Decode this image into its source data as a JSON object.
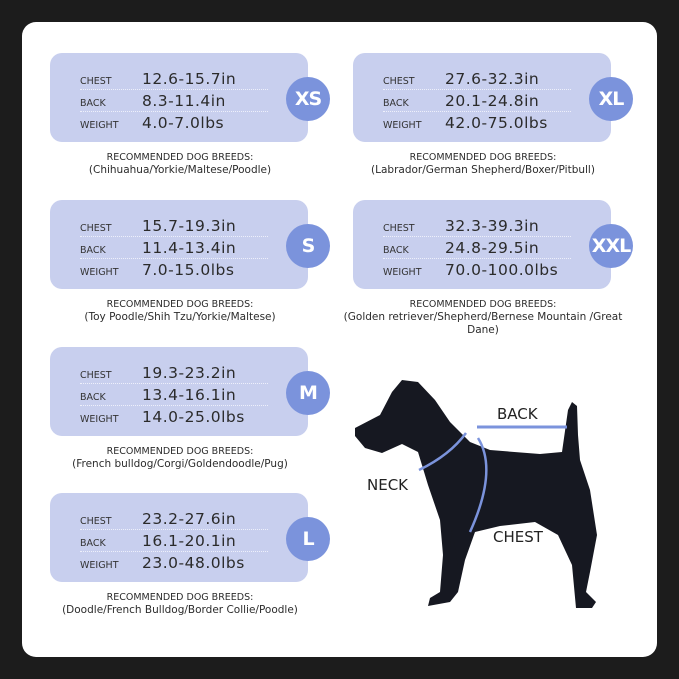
{
  "labels": {
    "chest": "CHEST",
    "back": "BACK",
    "weight": "WEIGHT",
    "recommended": "RECOMMENDED DOG BREEDS:"
  },
  "colors": {
    "card": "#c8cfee",
    "badge": "#7b93dc",
    "background": "#1c1c1c"
  },
  "sizes": [
    {
      "size": "XS",
      "chest": "12.6-15.7in",
      "back": "8.3-11.4in",
      "weight": "4.0-7.0lbs",
      "breeds": "(Chihuahua/Yorkie/Maltese/Poodle)"
    },
    {
      "size": "S",
      "chest": "15.7-19.3in",
      "back": "11.4-13.4in",
      "weight": "7.0-15.0lbs",
      "breeds": "(Toy Poodle/Shih Tzu/Yorkie/Maltese)"
    },
    {
      "size": "M",
      "chest": "19.3-23.2in",
      "back": "13.4-16.1in",
      "weight": "14.0-25.0lbs",
      "breeds": "(French bulldog/Corgi/Goldendoodle/Pug)"
    },
    {
      "size": "L",
      "chest": "23.2-27.6in",
      "back": "16.1-20.1in",
      "weight": "23.0-48.0lbs",
      "breeds": "(Doodle/French Bulldog/Border Collie/Poodle)"
    },
    {
      "size": "XL",
      "chest": "27.6-32.3in",
      "back": "20.1-24.8in",
      "weight": "42.0-75.0lbs",
      "breeds": "(Labrador/German Shepherd/Boxer/Pitbull)"
    },
    {
      "size": "XXL",
      "chest": "32.3-39.3in",
      "back": "24.8-29.5in",
      "weight": "70.0-100.0lbs",
      "breeds": "(Golden retriever/Shepherd/Bernese Mountain /Great Dane)"
    }
  ],
  "diagram": {
    "back": "BACK",
    "neck": "NECK",
    "chest": "CHEST"
  }
}
